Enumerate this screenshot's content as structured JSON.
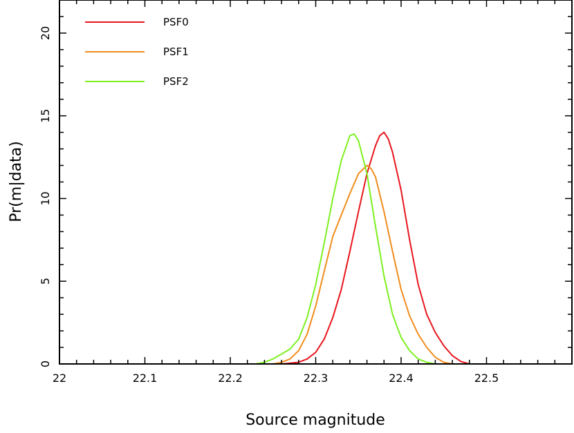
{
  "chart_data": {
    "type": "line",
    "title": "",
    "xlabel": "Source magnitude",
    "ylabel": "Pr(m|data)",
    "xlim": [
      22.0,
      22.6
    ],
    "ylim": [
      0,
      22
    ],
    "xticks": [
      22,
      22.1,
      22.2,
      22.3,
      22.4,
      22.5
    ],
    "xtick_labels": [
      "22",
      "22.1",
      "22.2",
      "22.3",
      "22.4",
      "22.5"
    ],
    "yticks": [
      0,
      5,
      10,
      15,
      20
    ],
    "ytick_labels": [
      "0",
      "5",
      "10",
      "15",
      "20"
    ],
    "grid": false,
    "legend_position": "top-left",
    "series": [
      {
        "name": "PSF0",
        "color": "#e8141c",
        "x": [
          22.26,
          22.28,
          22.29,
          22.3,
          22.31,
          22.32,
          22.33,
          22.34,
          22.35,
          22.36,
          22.37,
          22.375,
          22.38,
          22.385,
          22.39,
          22.4,
          22.41,
          22.42,
          22.43,
          22.44,
          22.45,
          22.46,
          22.47,
          22.48
        ],
        "values": [
          0.0,
          0.1,
          0.3,
          0.7,
          1.5,
          2.8,
          4.5,
          6.8,
          9.2,
          11.5,
          13.2,
          13.8,
          14.0,
          13.6,
          12.8,
          10.5,
          7.5,
          4.8,
          3.0,
          1.9,
          1.1,
          0.5,
          0.15,
          0.0
        ]
      },
      {
        "name": "PSF1",
        "color": "#f08c1a",
        "x": [
          22.25,
          22.26,
          22.27,
          22.28,
          22.29,
          22.3,
          22.31,
          22.32,
          22.33,
          22.34,
          22.35,
          22.36,
          22.365,
          22.37,
          22.38,
          22.39,
          22.4,
          22.41,
          22.42,
          22.43,
          22.44,
          22.45,
          22.46
        ],
        "values": [
          0.0,
          0.1,
          0.3,
          0.8,
          1.8,
          3.5,
          5.6,
          7.7,
          9.0,
          10.3,
          11.5,
          12.0,
          11.8,
          11.3,
          9.2,
          6.8,
          4.5,
          2.9,
          1.8,
          1.0,
          0.4,
          0.1,
          0.0
        ]
      },
      {
        "name": "PSF2",
        "color": "#7df01e",
        "x": [
          22.23,
          22.24,
          22.25,
          22.26,
          22.27,
          22.28,
          22.29,
          22.3,
          22.31,
          22.32,
          22.33,
          22.34,
          22.345,
          22.35,
          22.36,
          22.37,
          22.38,
          22.39,
          22.4,
          22.41,
          22.42,
          22.43,
          22.44
        ],
        "values": [
          0.0,
          0.1,
          0.3,
          0.6,
          0.9,
          1.5,
          2.8,
          4.8,
          7.3,
          10.0,
          12.3,
          13.8,
          13.9,
          13.5,
          11.5,
          8.3,
          5.3,
          3.0,
          1.6,
          0.8,
          0.3,
          0.1,
          0.0
        ]
      }
    ]
  }
}
